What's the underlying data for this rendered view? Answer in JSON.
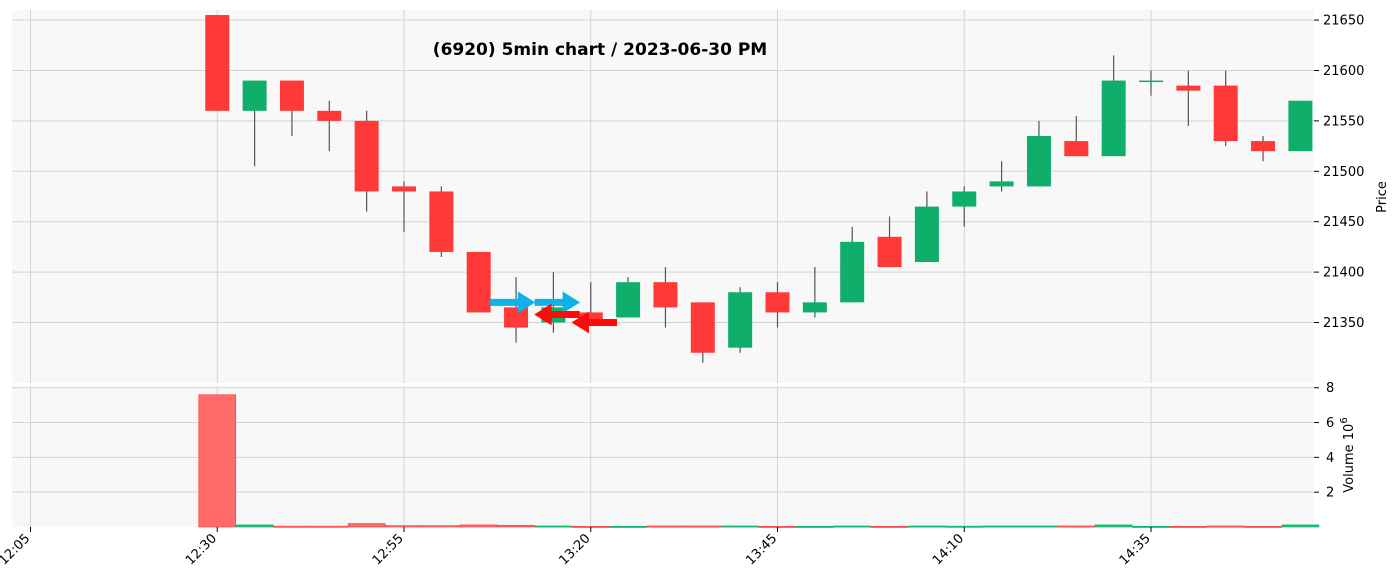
{
  "chart_data": {
    "type": "candlestick",
    "title": "(6920) 5min chart / 2023-06-30 PM",
    "price_axis": {
      "label": "Price",
      "ylim": [
        21290,
        21660
      ],
      "ticks": [
        21350,
        21400,
        21450,
        21500,
        21550,
        21600,
        21650
      ]
    },
    "volume_axis": {
      "label": "Volume",
      "multiplier": "10",
      "exponent": "6",
      "ylim": [
        0,
        8.1
      ],
      "ticks": [
        2,
        4,
        6,
        8
      ]
    },
    "x_ticks": [
      "12:05",
      "12:30",
      "12:55",
      "13:20",
      "13:45",
      "14:10",
      "14:35"
    ],
    "x_tick_slots": [
      0,
      5,
      10,
      15,
      20,
      25,
      30
    ],
    "slot_count": 35,
    "up_color": "#0fae6a",
    "down_color": "#ff3838",
    "volume_up_color": "#17c17a",
    "volume_down_color": "#ff6b6b",
    "buy_marker_color": "#10b0e8",
    "sell_marker_color": "#ff0a0a",
    "grid": true,
    "candles": [
      {
        "slot": 5,
        "open": 21655,
        "high": 21655,
        "low": 21560,
        "close": 21560,
        "volume": 7.6
      },
      {
        "slot": 6,
        "open": 21560,
        "high": 21590,
        "low": 21505,
        "close": 21590,
        "volume": 0.12
      },
      {
        "slot": 7,
        "open": 21590,
        "high": 21590,
        "low": 21535,
        "close": 21560,
        "volume": 0.05
      },
      {
        "slot": 8,
        "open": 21560,
        "high": 21570,
        "low": 21520,
        "close": 21550,
        "volume": 0.05
      },
      {
        "slot": 9,
        "open": 21550,
        "high": 21560,
        "low": 21460,
        "close": 21480,
        "volume": 0.2
      },
      {
        "slot": 10,
        "open": 21485,
        "high": 21490,
        "low": 21440,
        "close": 21480,
        "volume": 0.08
      },
      {
        "slot": 11,
        "open": 21480,
        "high": 21485,
        "low": 21415,
        "close": 21420,
        "volume": 0.08
      },
      {
        "slot": 12,
        "open": 21420,
        "high": 21420,
        "low": 21360,
        "close": 21360,
        "volume": 0.12
      },
      {
        "slot": 13,
        "open": 21365,
        "high": 21395,
        "low": 21330,
        "close": 21345,
        "volume": 0.1
      },
      {
        "slot": 14,
        "open": 21350,
        "high": 21400,
        "low": 21340,
        "close": 21365,
        "volume": 0.06
      },
      {
        "slot": 15,
        "open": 21360,
        "high": 21390,
        "low": 21350,
        "close": 21350,
        "volume": 0.04
      },
      {
        "slot": 16,
        "open": 21355,
        "high": 21395,
        "low": 21355,
        "close": 21390,
        "volume": 0.04
      },
      {
        "slot": 17,
        "open": 21390,
        "high": 21405,
        "low": 21345,
        "close": 21365,
        "volume": 0.06
      },
      {
        "slot": 18,
        "open": 21370,
        "high": 21370,
        "low": 21310,
        "close": 21320,
        "volume": 0.06
      },
      {
        "slot": 19,
        "open": 21325,
        "high": 21385,
        "low": 21320,
        "close": 21380,
        "volume": 0.06
      },
      {
        "slot": 20,
        "open": 21380,
        "high": 21390,
        "low": 21345,
        "close": 21360,
        "volume": 0.04
      },
      {
        "slot": 21,
        "open": 21360,
        "high": 21405,
        "low": 21355,
        "close": 21370,
        "volume": 0.04
      },
      {
        "slot": 22,
        "open": 21370,
        "high": 21445,
        "low": 21370,
        "close": 21430,
        "volume": 0.06
      },
      {
        "slot": 23,
        "open": 21435,
        "high": 21455,
        "low": 21405,
        "close": 21405,
        "volume": 0.04
      },
      {
        "slot": 24,
        "open": 21410,
        "high": 21480,
        "low": 21410,
        "close": 21465,
        "volume": 0.06
      },
      {
        "slot": 25,
        "open": 21465,
        "high": 21485,
        "low": 21445,
        "close": 21480,
        "volume": 0.05
      },
      {
        "slot": 26,
        "open": 21485,
        "high": 21510,
        "low": 21480,
        "close": 21490,
        "volume": 0.06
      },
      {
        "slot": 27,
        "open": 21485,
        "high": 21550,
        "low": 21485,
        "close": 21535,
        "volume": 0.06
      },
      {
        "slot": 28,
        "open": 21530,
        "high": 21555,
        "low": 21515,
        "close": 21515,
        "volume": 0.06
      },
      {
        "slot": 29,
        "open": 21515,
        "high": 21615,
        "low": 21515,
        "close": 21590,
        "volume": 0.12
      },
      {
        "slot": 30,
        "open": 21590,
        "high": 21600,
        "low": 21575,
        "close": 21590,
        "volume": 0.04
      },
      {
        "slot": 31,
        "open": 21585,
        "high": 21600,
        "low": 21545,
        "close": 21580,
        "volume": 0.04
      },
      {
        "slot": 32,
        "open": 21585,
        "high": 21600,
        "low": 21525,
        "close": 21530,
        "volume": 0.06
      },
      {
        "slot": 33,
        "open": 21530,
        "high": 21535,
        "low": 21510,
        "close": 21520,
        "volume": 0.04
      },
      {
        "slot": 34,
        "open": 21520,
        "high": 21570,
        "low": 21520,
        "close": 21570,
        "volume": 0.12
      }
    ],
    "markers": [
      {
        "type": "buy",
        "slot": 12.9,
        "price": 21370
      },
      {
        "type": "buy",
        "slot": 14.1,
        "price": 21370
      },
      {
        "type": "sell",
        "slot": 14.1,
        "price": 21358
      },
      {
        "type": "sell",
        "slot": 15.1,
        "price": 21350
      }
    ]
  }
}
